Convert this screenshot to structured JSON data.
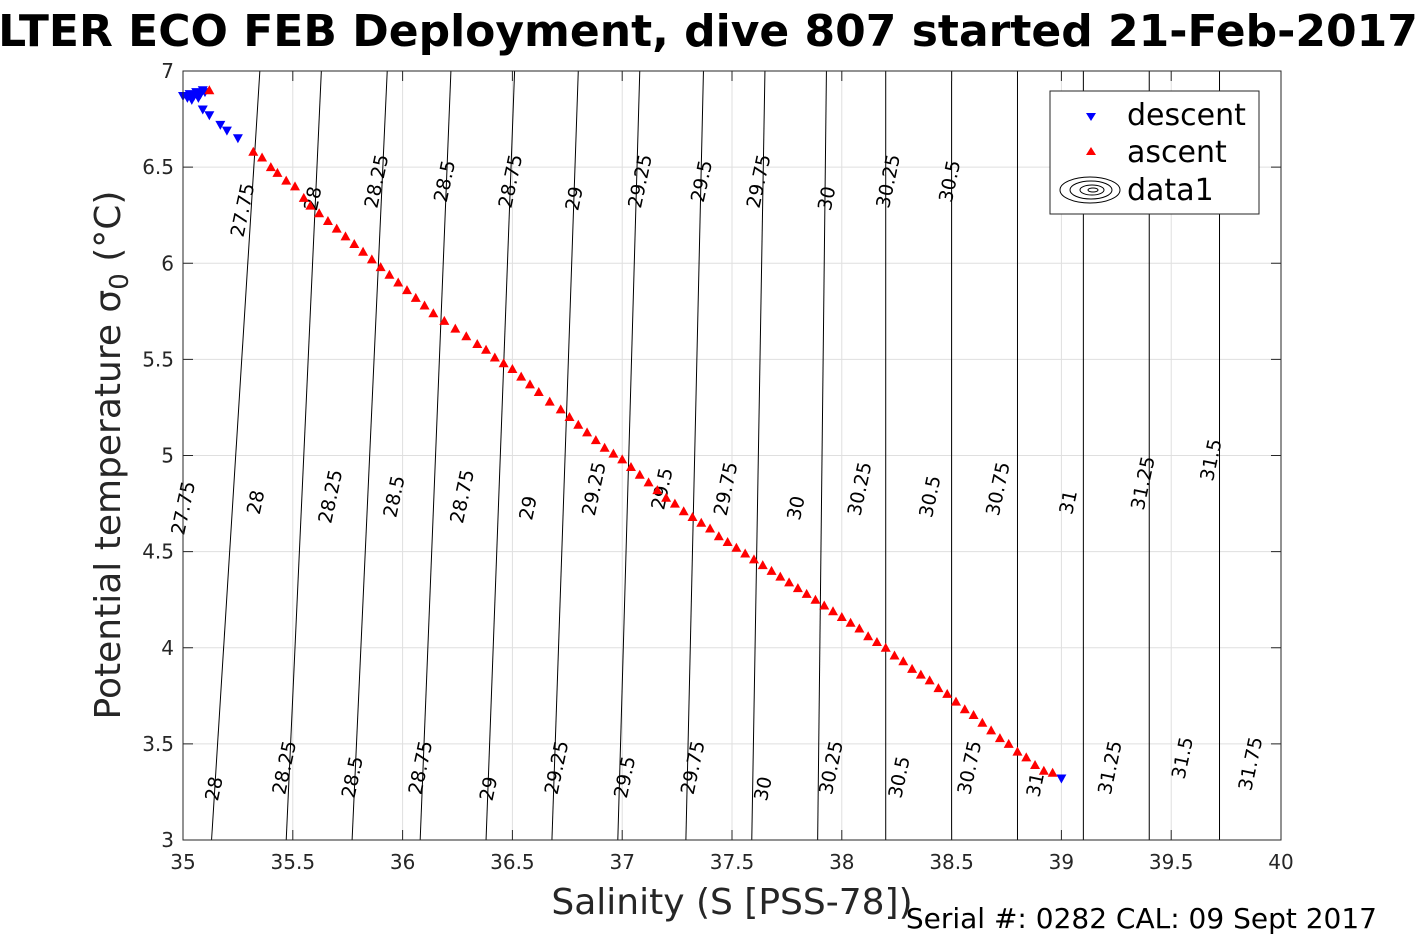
{
  "chart_data": {
    "type": "scatter",
    "title": "LTER ECO FEB Deployment, dive 807 started 21-Feb-2017",
    "xlabel": "Salinity (S [PSS-78])",
    "ylabel": "Potential temperature σ",
    "ylabel_sub": "0",
    "ylabel_unit": " (°C)",
    "xlim": [
      35,
      40
    ],
    "ylim": [
      3,
      7
    ],
    "xticks": [
      "35",
      "35.5",
      "36",
      "36.5",
      "37",
      "37.5",
      "38",
      "38.5",
      "39",
      "39.5",
      "40"
    ],
    "yticks": [
      "3",
      "3.5",
      "4",
      "4.5",
      "5",
      "5.5",
      "6",
      "6.5",
      "7"
    ],
    "grid": true,
    "legend_position": "top-right",
    "legend": [
      {
        "label": "descent",
        "color": "#0000ff",
        "marker": "triangle-down"
      },
      {
        "label": "ascent",
        "color": "#ff0000",
        "marker": "triangle-up"
      },
      {
        "label": "data1",
        "color": "#000000",
        "marker": "contour"
      }
    ],
    "series": [
      {
        "name": "descent",
        "color": "#0000ff",
        "points": [
          [
            35.0,
            6.87
          ],
          [
            35.02,
            6.86
          ],
          [
            35.03,
            6.88
          ],
          [
            35.05,
            6.87
          ],
          [
            35.06,
            6.89
          ],
          [
            35.08,
            6.88
          ],
          [
            35.09,
            6.9
          ],
          [
            35.1,
            6.89
          ],
          [
            35.04,
            6.85
          ],
          [
            35.07,
            6.86
          ],
          [
            35.09,
            6.8
          ],
          [
            35.12,
            6.77
          ],
          [
            35.17,
            6.72
          ],
          [
            35.2,
            6.69
          ],
          [
            35.25,
            6.65
          ],
          [
            39.0,
            3.32
          ]
        ]
      },
      {
        "name": "ascent",
        "color": "#ff0000",
        "points": [
          [
            35.12,
            6.9
          ],
          [
            35.32,
            6.58
          ],
          [
            35.36,
            6.55
          ],
          [
            35.4,
            6.5
          ],
          [
            35.43,
            6.47
          ],
          [
            35.47,
            6.43
          ],
          [
            35.51,
            6.4
          ],
          [
            35.55,
            6.34
          ],
          [
            35.58,
            6.3
          ],
          [
            35.62,
            6.26
          ],
          [
            35.66,
            6.22
          ],
          [
            35.7,
            6.18
          ],
          [
            35.74,
            6.14
          ],
          [
            35.78,
            6.1
          ],
          [
            35.82,
            6.06
          ],
          [
            35.86,
            6.02
          ],
          [
            35.9,
            5.98
          ],
          [
            35.94,
            5.94
          ],
          [
            35.98,
            5.9
          ],
          [
            36.02,
            5.86
          ],
          [
            36.06,
            5.82
          ],
          [
            36.1,
            5.78
          ],
          [
            36.14,
            5.74
          ],
          [
            36.19,
            5.7
          ],
          [
            36.24,
            5.66
          ],
          [
            36.29,
            5.62
          ],
          [
            36.34,
            5.58
          ],
          [
            36.38,
            5.55
          ],
          [
            36.42,
            5.51
          ],
          [
            36.46,
            5.48
          ],
          [
            36.5,
            5.45
          ],
          [
            36.54,
            5.41
          ],
          [
            36.58,
            5.37
          ],
          [
            36.62,
            5.33
          ],
          [
            36.67,
            5.28
          ],
          [
            36.72,
            5.24
          ],
          [
            36.76,
            5.2
          ],
          [
            36.8,
            5.16
          ],
          [
            36.84,
            5.12
          ],
          [
            36.88,
            5.08
          ],
          [
            36.92,
            5.04
          ],
          [
            36.96,
            5.01
          ],
          [
            37.0,
            4.98
          ],
          [
            37.04,
            4.94
          ],
          [
            37.08,
            4.9
          ],
          [
            37.12,
            4.86
          ],
          [
            37.16,
            4.82
          ],
          [
            37.2,
            4.78
          ],
          [
            37.24,
            4.75
          ],
          [
            37.28,
            4.71
          ],
          [
            37.32,
            4.68
          ],
          [
            37.36,
            4.65
          ],
          [
            37.4,
            4.62
          ],
          [
            37.44,
            4.58
          ],
          [
            37.48,
            4.55
          ],
          [
            37.52,
            4.52
          ],
          [
            37.56,
            4.49
          ],
          [
            37.6,
            4.46
          ],
          [
            37.64,
            4.43
          ],
          [
            37.68,
            4.4
          ],
          [
            37.72,
            4.37
          ],
          [
            37.76,
            4.34
          ],
          [
            37.8,
            4.31
          ],
          [
            37.84,
            4.28
          ],
          [
            37.88,
            4.25
          ],
          [
            37.92,
            4.22
          ],
          [
            37.96,
            4.19
          ],
          [
            38.0,
            4.16
          ],
          [
            38.04,
            4.13
          ],
          [
            38.08,
            4.1
          ],
          [
            38.12,
            4.06
          ],
          [
            38.16,
            4.03
          ],
          [
            38.2,
            4.0
          ],
          [
            38.24,
            3.96
          ],
          [
            38.28,
            3.93
          ],
          [
            38.32,
            3.89
          ],
          [
            38.36,
            3.86
          ],
          [
            38.4,
            3.83
          ],
          [
            38.44,
            3.79
          ],
          [
            38.48,
            3.76
          ],
          [
            38.52,
            3.72
          ],
          [
            38.56,
            3.68
          ],
          [
            38.6,
            3.65
          ],
          [
            38.64,
            3.61
          ],
          [
            38.68,
            3.57
          ],
          [
            38.72,
            3.53
          ],
          [
            38.76,
            3.5
          ],
          [
            38.8,
            3.46
          ],
          [
            38.84,
            3.43
          ],
          [
            38.88,
            3.39
          ],
          [
            38.92,
            3.36
          ],
          [
            38.96,
            3.35
          ]
        ]
      }
    ],
    "contours": [
      {
        "label": "27.75",
        "top_x": 35.0,
        "bottom_x": 35.0
      },
      {
        "label": "28",
        "top_x": 35.35,
        "bottom_x": 35.13
      },
      {
        "label": "28.25",
        "top_x": 35.63,
        "bottom_x": 35.47
      },
      {
        "label": "28.5",
        "top_x": 35.93,
        "bottom_x": 35.77
      },
      {
        "label": "28.75",
        "top_x": 36.22,
        "bottom_x": 36.08
      },
      {
        "label": "29",
        "top_x": 36.51,
        "bottom_x": 36.38
      },
      {
        "label": "29.25",
        "top_x": 36.8,
        "bottom_x": 36.68
      },
      {
        "label": "29.5",
        "top_x": 37.08,
        "bottom_x": 36.98
      },
      {
        "label": "29.75",
        "top_x": 37.37,
        "bottom_x": 37.29
      },
      {
        "label": "30",
        "top_x": 37.65,
        "bottom_x": 37.59
      },
      {
        "label": "30.25",
        "top_x": 37.93,
        "bottom_x": 37.89
      },
      {
        "label": "30.5",
        "top_x": 38.2,
        "bottom_x": 38.2
      },
      {
        "label": "30.75",
        "top_x": 38.5,
        "bottom_x": 38.5
      },
      {
        "label": "31",
        "top_x": 38.8,
        "bottom_x": 38.8
      },
      {
        "label": "31.25",
        "top_x": 39.1,
        "bottom_x": 39.1
      },
      {
        "label": "31.5",
        "top_x": 39.4,
        "bottom_x": 39.4
      },
      {
        "label": "31.75",
        "top_x": 39.72,
        "bottom_x": 39.72
      }
    ],
    "contour_labels": [
      {
        "text": "27.75",
        "x": 35.3,
        "y": 6.27
      },
      {
        "text": "28",
        "x": 35.62,
        "y": 6.33
      },
      {
        "text": "28.25",
        "x": 35.91,
        "y": 6.42
      },
      {
        "text": "28.5",
        "x": 36.22,
        "y": 6.42
      },
      {
        "text": "28.75",
        "x": 36.52,
        "y": 6.42
      },
      {
        "text": "29",
        "x": 36.81,
        "y": 6.33
      },
      {
        "text": "29.25",
        "x": 37.11,
        "y": 6.42
      },
      {
        "text": "29.5",
        "x": 37.39,
        "y": 6.42
      },
      {
        "text": "29.75",
        "x": 37.65,
        "y": 6.42
      },
      {
        "text": "30",
        "x": 37.96,
        "y": 6.33
      },
      {
        "text": "30.25",
        "x": 38.24,
        "y": 6.42
      },
      {
        "text": "30.5",
        "x": 38.52,
        "y": 6.42
      },
      {
        "text": "27.75",
        "x": 35.03,
        "y": 4.72
      },
      {
        "text": "28",
        "x": 35.36,
        "y": 4.75
      },
      {
        "text": "28.25",
        "x": 35.7,
        "y": 4.78
      },
      {
        "text": "28.5",
        "x": 35.99,
        "y": 4.78
      },
      {
        "text": "28.75",
        "x": 36.3,
        "y": 4.78
      },
      {
        "text": "29",
        "x": 36.6,
        "y": 4.72
      },
      {
        "text": "29.25",
        "x": 36.9,
        "y": 4.82
      },
      {
        "text": "29.5",
        "x": 37.21,
        "y": 4.82
      },
      {
        "text": "29.75",
        "x": 37.5,
        "y": 4.82
      },
      {
        "text": "30",
        "x": 37.82,
        "y": 4.72
      },
      {
        "text": "30.25",
        "x": 38.11,
        "y": 4.82
      },
      {
        "text": "30.5",
        "x": 38.43,
        "y": 4.78
      },
      {
        "text": "30.75",
        "x": 38.74,
        "y": 4.82
      },
      {
        "text": "31",
        "x": 39.06,
        "y": 4.75
      },
      {
        "text": "31.25",
        "x": 39.4,
        "y": 4.85
      },
      {
        "text": "31.5",
        "x": 39.71,
        "y": 4.97
      },
      {
        "text": "28",
        "x": 35.17,
        "y": 3.26
      },
      {
        "text": "28.25",
        "x": 35.49,
        "y": 3.37
      },
      {
        "text": "28.5",
        "x": 35.8,
        "y": 3.32
      },
      {
        "text": "28.75",
        "x": 36.11,
        "y": 3.37
      },
      {
        "text": "29",
        "x": 36.42,
        "y": 3.26
      },
      {
        "text": "29.25",
        "x": 36.73,
        "y": 3.37
      },
      {
        "text": "29.5",
        "x": 37.04,
        "y": 3.32
      },
      {
        "text": "29.75",
        "x": 37.35,
        "y": 3.37
      },
      {
        "text": "30",
        "x": 37.67,
        "y": 3.26
      },
      {
        "text": "30.25",
        "x": 37.98,
        "y": 3.37
      },
      {
        "text": "30.5",
        "x": 38.29,
        "y": 3.32
      },
      {
        "text": "30.75",
        "x": 38.61,
        "y": 3.37
      },
      {
        "text": "31",
        "x": 38.91,
        "y": 3.28
      },
      {
        "text": "31.25",
        "x": 39.25,
        "y": 3.37
      },
      {
        "text": "31.5",
        "x": 39.58,
        "y": 3.42
      },
      {
        "text": "31.75",
        "x": 39.89,
        "y": 3.39
      }
    ]
  },
  "footer": {
    "serial_text": "Serial #: 0282  CAL: 09 Sept 2017"
  }
}
